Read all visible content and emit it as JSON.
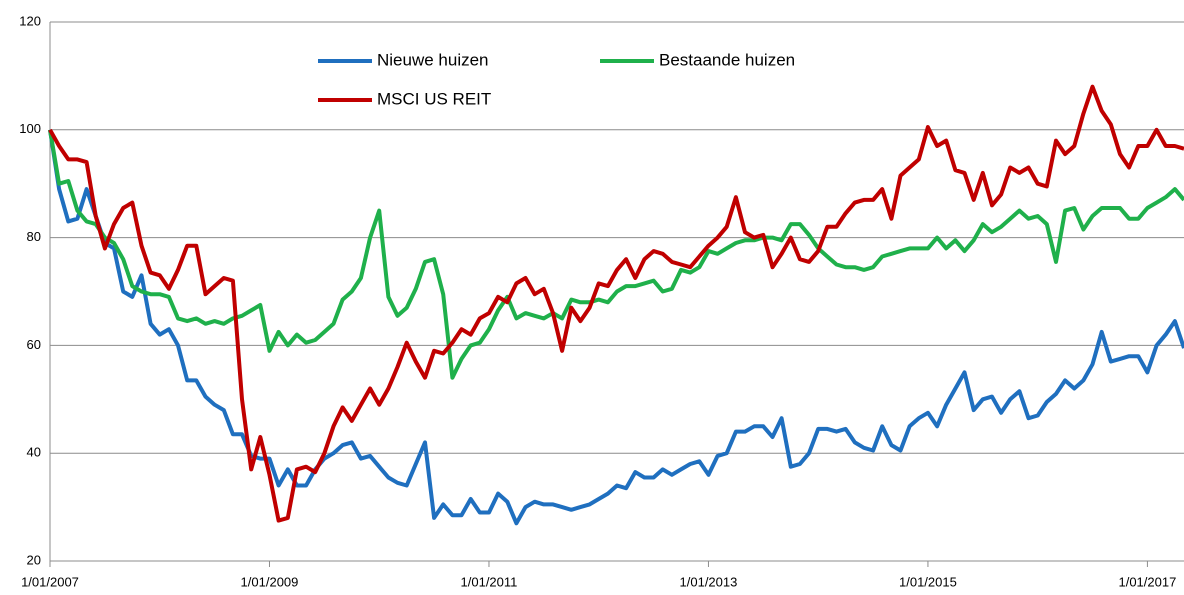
{
  "chart_data": {
    "type": "line",
    "x": [
      "2007-01-01",
      "2007-02-01",
      "2007-03-01",
      "2007-04-01",
      "2007-05-01",
      "2007-06-01",
      "2007-07-01",
      "2007-08-01",
      "2007-09-01",
      "2007-10-01",
      "2007-11-01",
      "2007-12-01",
      "2008-01-01",
      "2008-02-01",
      "2008-03-01",
      "2008-04-01",
      "2008-05-01",
      "2008-06-01",
      "2008-07-01",
      "2008-08-01",
      "2008-09-01",
      "2008-10-01",
      "2008-11-01",
      "2008-12-01",
      "2009-01-01",
      "2009-02-01",
      "2009-03-01",
      "2009-04-01",
      "2009-05-01",
      "2009-06-01",
      "2009-07-01",
      "2009-08-01",
      "2009-09-01",
      "2009-10-01",
      "2009-11-01",
      "2009-12-01",
      "2010-01-01",
      "2010-02-01",
      "2010-03-01",
      "2010-04-01",
      "2010-05-01",
      "2010-06-01",
      "2010-07-01",
      "2010-08-01",
      "2010-09-01",
      "2010-10-01",
      "2010-11-01",
      "2010-12-01",
      "2011-01-01",
      "2011-02-01",
      "2011-03-01",
      "2011-04-01",
      "2011-05-01",
      "2011-06-01",
      "2011-07-01",
      "2011-08-01",
      "2011-09-01",
      "2011-10-01",
      "2011-11-01",
      "2011-12-01",
      "2012-01-01",
      "2012-02-01",
      "2012-03-01",
      "2012-04-01",
      "2012-05-01",
      "2012-06-01",
      "2012-07-01",
      "2012-08-01",
      "2012-09-01",
      "2012-10-01",
      "2012-11-01",
      "2012-12-01",
      "2013-01-01",
      "2013-02-01",
      "2013-03-01",
      "2013-04-01",
      "2013-05-01",
      "2013-06-01",
      "2013-07-01",
      "2013-08-01",
      "2013-09-01",
      "2013-10-01",
      "2013-11-01",
      "2013-12-01",
      "2014-01-01",
      "2014-02-01",
      "2014-03-01",
      "2014-04-01",
      "2014-05-01",
      "2014-06-01",
      "2014-07-01",
      "2014-08-01",
      "2014-09-01",
      "2014-10-01",
      "2014-11-01",
      "2014-12-01",
      "2015-01-01",
      "2015-02-01",
      "2015-03-01",
      "2015-04-01",
      "2015-05-01",
      "2015-06-01",
      "2015-07-01",
      "2015-08-01",
      "2015-09-01",
      "2015-10-01",
      "2015-11-01",
      "2015-12-01",
      "2016-01-01",
      "2016-02-01",
      "2016-03-01",
      "2016-04-01",
      "2016-05-01",
      "2016-06-01",
      "2016-07-01",
      "2016-08-01",
      "2016-09-01",
      "2016-10-01",
      "2016-11-01",
      "2016-12-01",
      "2017-01-01",
      "2017-02-01",
      "2017-03-01",
      "2017-04-01",
      "2017-05-01"
    ],
    "series": [
      {
        "name": "Nieuwe huizen",
        "color": "#1f6fbf",
        "values": [
          100,
          89,
          83,
          83.5,
          89,
          84,
          79,
          78,
          70,
          69,
          73,
          64,
          62,
          63,
          60,
          53.5,
          53.5,
          50.5,
          49,
          48,
          43.5,
          43.5,
          39.5,
          39,
          39,
          34,
          37,
          34,
          34,
          37,
          39,
          40,
          41.5,
          42,
          39,
          39.5,
          37.5,
          35.5,
          34.5,
          34,
          38,
          42,
          28,
          30.5,
          28.5,
          28.5,
          31.5,
          29,
          29,
          32.5,
          31,
          27,
          30,
          31,
          30.5,
          30.5,
          30,
          29.5,
          30,
          30.5,
          31.5,
          32.5,
          34,
          33.5,
          36.5,
          35.5,
          35.5,
          37,
          36,
          37,
          38,
          38.5,
          36,
          39.5,
          40,
          44,
          44,
          45,
          45,
          43,
          46.5,
          37.5,
          38,
          40,
          44.5,
          44.5,
          44,
          44.5,
          42,
          41,
          40.5,
          45,
          41.5,
          40.5,
          45,
          46.5,
          47.5,
          45,
          49,
          52,
          55,
          48,
          50,
          50.5,
          47.5,
          50,
          51.5,
          46.5,
          47,
          49.5,
          51,
          53.5,
          52,
          53.5,
          56.5,
          62.5,
          57,
          57.5,
          58,
          58,
          55,
          60,
          62,
          64.5,
          59.5
        ]
      },
      {
        "name": "Bestaande huizen",
        "color": "#1fb04b",
        "values": [
          100,
          90,
          90.5,
          85,
          83,
          82.5,
          80,
          79,
          76,
          71,
          70,
          69.5,
          69.5,
          69,
          65,
          64.5,
          65,
          64,
          64.5,
          64,
          65,
          65.5,
          66.5,
          67.5,
          59,
          62.5,
          60,
          62,
          60.5,
          61,
          62.5,
          64,
          68.5,
          70,
          72.5,
          80,
          85,
          69,
          65.5,
          67,
          70.5,
          75.5,
          76,
          69.5,
          54,
          57.5,
          60,
          60.5,
          63,
          66.5,
          69,
          65,
          66,
          65.5,
          65,
          66,
          65,
          68.5,
          68,
          68,
          68.5,
          68,
          70,
          71,
          71,
          71.5,
          72,
          70,
          70.5,
          74,
          73.5,
          74.5,
          77.5,
          77,
          78,
          79,
          79.5,
          79.5,
          80,
          80,
          79.5,
          82.5,
          82.5,
          80.5,
          78,
          76.5,
          75,
          74.5,
          74.5,
          74,
          74.5,
          76.5,
          77,
          77.5,
          78,
          78,
          78,
          80,
          78,
          79.5,
          77.5,
          79.5,
          82.5,
          81,
          82,
          83.5,
          85,
          83.5,
          84,
          82.5,
          75.5,
          85,
          85.5,
          81.5,
          84,
          85.5,
          85.5,
          85.5,
          83.5,
          83.5,
          85.5,
          86.5,
          87.5,
          89,
          87
        ]
      },
      {
        "name": "MSCI US REIT",
        "color": "#c00000",
        "values": [
          100,
          97,
          94.5,
          94.5,
          94,
          84,
          78,
          82.5,
          85.5,
          86.5,
          78.5,
          73.5,
          73,
          70.5,
          74,
          78.5,
          78.5,
          69.5,
          71,
          72.5,
          72,
          50,
          37,
          43,
          36,
          27.5,
          28,
          37,
          37.5,
          36.5,
          40,
          45,
          48.5,
          46,
          49,
          52,
          49,
          52,
          56,
          60.5,
          57,
          54,
          59,
          58.5,
          60.5,
          63,
          62,
          65,
          66,
          69,
          68,
          71.5,
          72.5,
          69.5,
          70.5,
          66,
          59,
          67,
          64.5,
          67,
          71.5,
          71,
          74,
          76,
          72.5,
          76,
          77.5,
          77,
          75.5,
          75,
          74.5,
          76.5,
          78.5,
          80,
          82,
          87.5,
          81,
          80,
          80.5,
          74.5,
          77,
          80,
          76,
          75.5,
          77.5,
          82,
          82,
          84.5,
          86.5,
          87,
          87,
          89,
          83.5,
          91.5,
          93,
          94.5,
          100.5,
          97,
          98,
          92.5,
          92,
          87,
          92,
          86,
          88,
          93,
          92,
          93,
          90,
          89.5,
          98,
          95.5,
          97,
          103,
          108,
          103.5,
          101,
          95.5,
          93,
          97,
          97,
          100,
          97,
          97,
          96.5
        ]
      }
    ],
    "xlim": [
      "2007-01-01",
      "2017-05-01"
    ],
    "xticks": [
      {
        "value": "2007-01-01",
        "label": "1/01/2007"
      },
      {
        "value": "2009-01-01",
        "label": "1/01/2009"
      },
      {
        "value": "2011-01-01",
        "label": "1/01/2011"
      },
      {
        "value": "2013-01-01",
        "label": "1/01/2013"
      },
      {
        "value": "2015-01-01",
        "label": "1/01/2015"
      },
      {
        "value": "2017-01-01",
        "label": "1/01/2017"
      }
    ],
    "ylim": [
      20,
      120
    ],
    "yticks": [
      20,
      40,
      60,
      80,
      100,
      120
    ],
    "grid": true
  }
}
